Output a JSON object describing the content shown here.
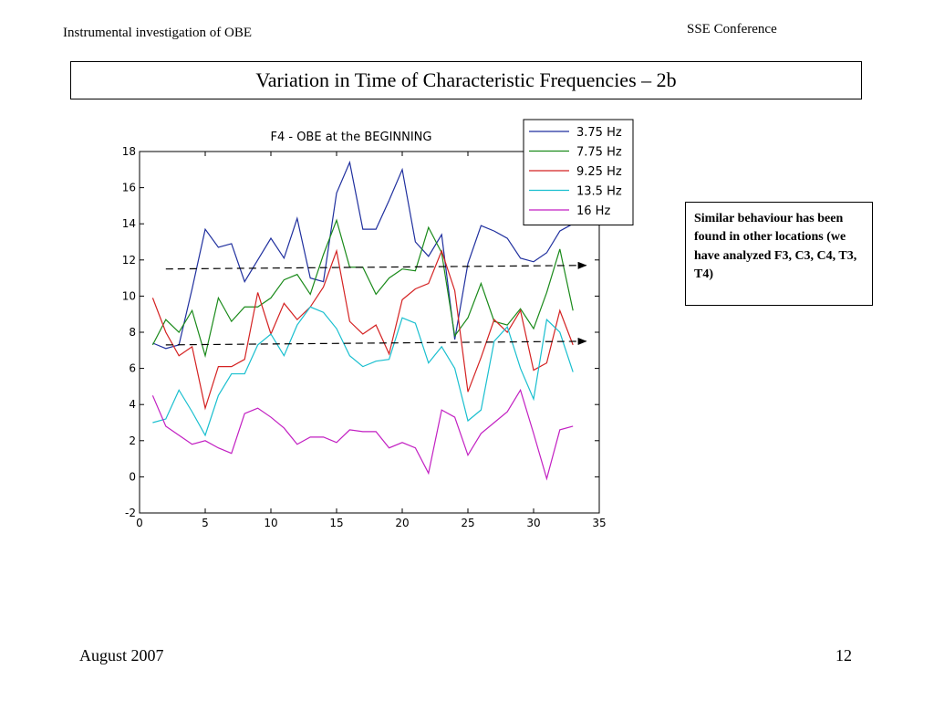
{
  "header": {
    "left": "Instrumental investigation of OBE",
    "right": "SSE Conference"
  },
  "slide_title": "Variation in Time of Characteristic Frequencies – 2b",
  "note": "Similar behaviour has been found in other locations (we have analyzed F3, C3, C4, T3, T4)",
  "footer": {
    "date": "August 2007",
    "page": "12"
  },
  "chart_data": {
    "type": "line",
    "title": "F4 - OBE at the BEGINNING",
    "xlabel": "",
    "ylabel": "",
    "xlim": [
      0,
      35
    ],
    "ylim": [
      -2,
      18
    ],
    "xticks": [
      0,
      5,
      10,
      15,
      20,
      25,
      30,
      35
    ],
    "yticks": [
      -2,
      0,
      2,
      4,
      6,
      8,
      10,
      12,
      14,
      16,
      18
    ],
    "grid": false,
    "legend": "top-right",
    "x": [
      1,
      2,
      3,
      4,
      5,
      6,
      7,
      8,
      9,
      10,
      11,
      12,
      13,
      14,
      15,
      16,
      17,
      18,
      19,
      20,
      21,
      22,
      23,
      24,
      25,
      26,
      27,
      28,
      29,
      30,
      31,
      32,
      33
    ],
    "series": [
      {
        "name": "3.75 Hz",
        "color": "#1f2f9e",
        "values": [
          7.4,
          7.1,
          7.3,
          10.4,
          13.7,
          12.7,
          12.9,
          10.8,
          12.0,
          13.2,
          12.1,
          14.3,
          11.0,
          10.8,
          15.7,
          17.4,
          13.7,
          13.7,
          15.3,
          17.0,
          13.0,
          12.2,
          13.4,
          7.6,
          11.8,
          13.9,
          13.6,
          13.2,
          12.1,
          11.9,
          12.4,
          13.6,
          14.0
        ]
      },
      {
        "name": "7.75 Hz",
        "color": "#1a8a1a",
        "values": [
          7.3,
          8.7,
          8.0,
          9.2,
          6.7,
          9.9,
          8.6,
          9.4,
          9.4,
          9.9,
          10.9,
          11.2,
          10.1,
          12.3,
          14.2,
          11.6,
          11.6,
          10.1,
          11.0,
          11.5,
          11.4,
          13.8,
          12.4,
          7.8,
          8.8,
          10.7,
          8.6,
          8.4,
          9.3,
          8.2,
          10.2,
          12.6,
          9.2
        ]
      },
      {
        "name": "9.25 Hz",
        "color": "#d42222",
        "values": [
          9.9,
          8.0,
          6.7,
          7.2,
          3.8,
          6.1,
          6.1,
          6.5,
          10.2,
          7.9,
          9.6,
          8.7,
          9.4,
          10.5,
          12.5,
          8.6,
          7.9,
          8.4,
          6.8,
          9.8,
          10.4,
          10.7,
          12.5,
          10.3,
          4.7,
          6.6,
          8.7,
          8.0,
          9.2,
          5.9,
          6.3,
          9.2,
          7.3
        ]
      },
      {
        "name": "13.5 Hz",
        "color": "#19bfcf",
        "values": [
          3.0,
          3.2,
          4.8,
          3.6,
          2.3,
          4.5,
          5.7,
          5.7,
          7.3,
          7.9,
          6.7,
          8.4,
          9.4,
          9.1,
          8.2,
          6.7,
          6.1,
          6.4,
          6.5,
          8.8,
          8.5,
          6.3,
          7.2,
          6.0,
          3.1,
          3.7,
          7.5,
          8.3,
          6.0,
          4.3,
          8.7,
          8.0,
          5.8
        ]
      },
      {
        "name": "16 Hz",
        "color": "#c21fc2",
        "values": [
          4.5,
          2.8,
          2.3,
          1.8,
          2.0,
          1.6,
          1.3,
          3.5,
          3.8,
          3.3,
          2.7,
          1.8,
          2.2,
          2.2,
          1.9,
          2.6,
          2.5,
          2.5,
          1.6,
          1.9,
          1.6,
          0.2,
          3.7,
          3.3,
          1.2,
          2.4,
          3.0,
          3.6,
          4.8,
          2.4,
          -0.1,
          2.6,
          2.8
        ]
      }
    ],
    "annotations": [
      {
        "type": "dashed-arrow",
        "x": [
          2,
          34
        ],
        "y": [
          11.5,
          11.7
        ]
      },
      {
        "type": "dashed-arrow",
        "x": [
          2,
          34
        ],
        "y": [
          7.3,
          7.5
        ]
      }
    ]
  }
}
